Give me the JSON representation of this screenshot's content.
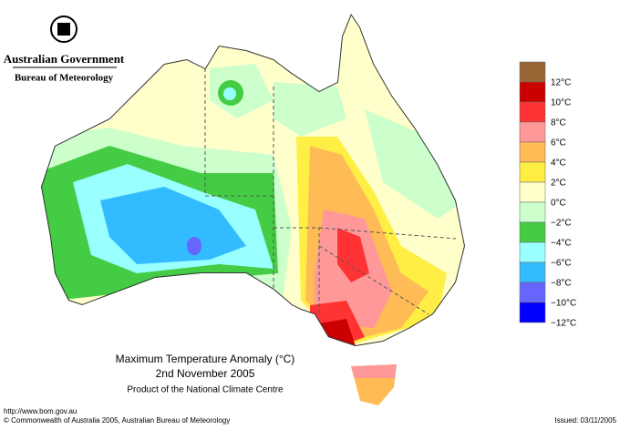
{
  "header": {
    "agency": "Australian Government",
    "bureau": "Bureau of Meteorology"
  },
  "legend": {
    "colors": [
      "#996633",
      "#cc0000",
      "#ff3333",
      "#ff9999",
      "#ffbb55",
      "#ffee44",
      "#ffffcc",
      "#ccffcc",
      "#44cc44",
      "#99ffff",
      "#33bbff",
      "#6666ff",
      "#0000ff"
    ],
    "labels": [
      "12°C",
      "10°C",
      "8°C",
      "6°C",
      "4°C",
      "2°C",
      "0°C",
      "−2°C",
      "−4°C",
      "−6°C",
      "−8°C",
      "−10°C",
      "−12°C"
    ]
  },
  "title": {
    "line1": "Maximum Temperature Anomaly (°C)",
    "line2": "2nd November 2005",
    "line3": "Product of the National Climate Centre"
  },
  "footer": {
    "url": "http://www.bom.gov.au",
    "copyright": "© Commonwealth of Australia 2005, Australian Bureau of Meteorology",
    "issued": "Issued: 03/11/2005"
  }
}
